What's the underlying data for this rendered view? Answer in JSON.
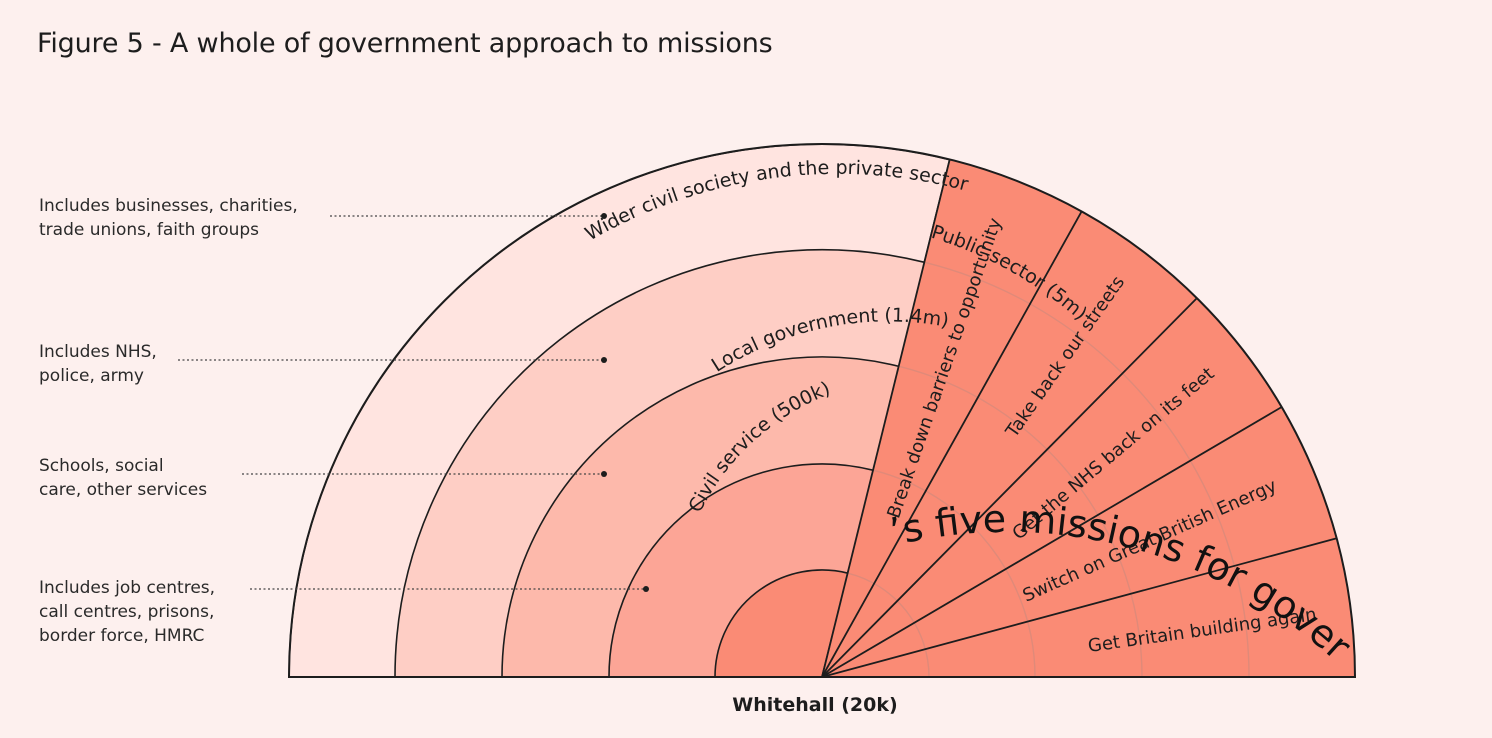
{
  "title": "Figure 5 - A whole of government approach to missions",
  "missions_heading": "Labour’s five missions for government",
  "center_label": "Whitehall (20k)",
  "rings": [
    {
      "label": "Civil service (500k)",
      "color": "#fca596"
    },
    {
      "label": "Local government (1.4m)",
      "color": "#fdb9ab"
    },
    {
      "label": "Public sector (5m)",
      "color": "#fecec5"
    },
    {
      "label": "Wider civil society and the private sector",
      "color": "#ffe4e0"
    }
  ],
  "core_color": "#fa8b75",
  "mission_color": "#fa8b75",
  "missions": [
    "Break down barriers to opportunity",
    "Take back our streets",
    "Get the NHS back on its feet",
    "Switch on Great British Energy",
    "Get Britain building again"
  ],
  "notes": [
    {
      "lines": [
        "Includes businesses, charities,",
        "trade unions, faith groups"
      ]
    },
    {
      "lines": [
        "Includes NHS,",
        "police, army"
      ]
    },
    {
      "lines": [
        "Schools, social",
        "care, other services"
      ]
    },
    {
      "lines": [
        "Includes job centres,",
        "call centres, prisons,",
        "border force, HMRC"
      ]
    }
  ]
}
